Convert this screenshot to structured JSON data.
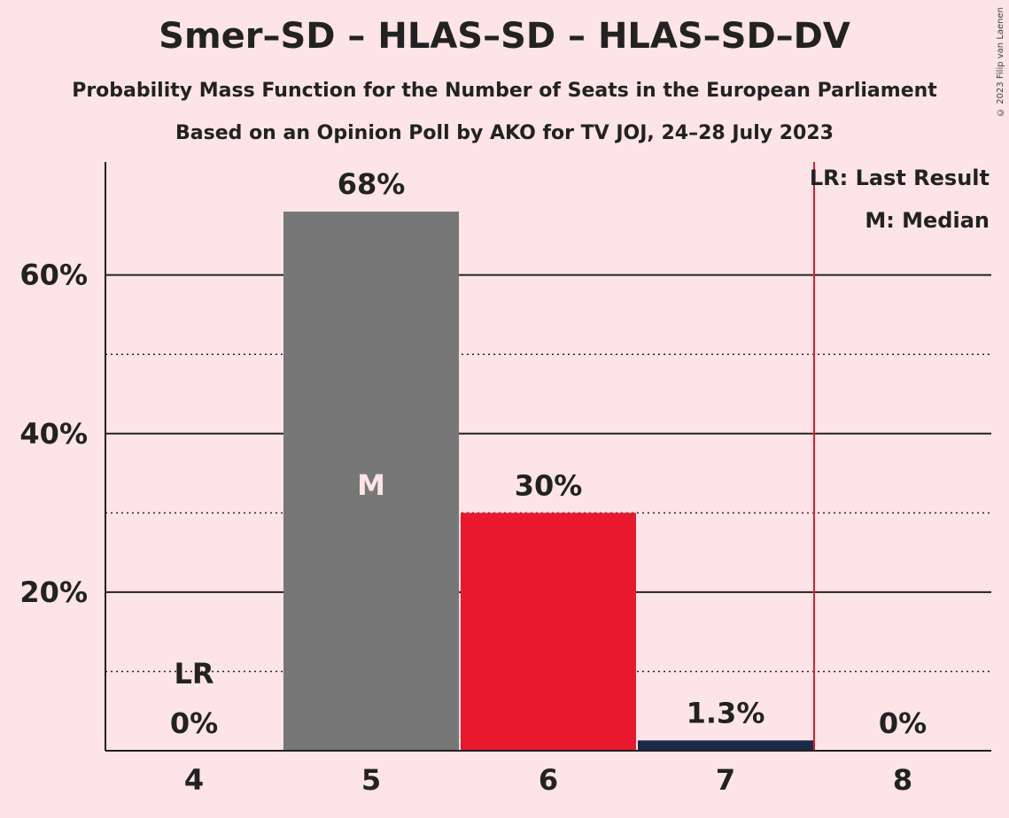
{
  "title": "Smer–SD – HLAS–SD – HLAS–SD–DV",
  "subtitle": "Probability Mass Function for the Number of Seats in the European Parliament",
  "subtitle2": "Based on an Opinion Poll by AKO for TV JOJ, 24–28 July 2023",
  "copyright": "© 2023 Filip van Laenen",
  "legend": {
    "last_result": "LR: Last Result",
    "median": "M: Median"
  },
  "colors": {
    "background": "#fde4e6",
    "median_bar": "#777777",
    "party": "#e8192f",
    "small_bar": "#1b2a4a",
    "last_result_line": "#e8192f"
  },
  "chart_data": {
    "type": "bar",
    "categories": [
      "4",
      "5",
      "6",
      "7",
      "8"
    ],
    "values": [
      0,
      68,
      30,
      1.3,
      0
    ],
    "value_labels": [
      "0%",
      "68%",
      "30%",
      "1.3%",
      "0%"
    ],
    "bar_colors": [
      "#e8192f",
      "#777777",
      "#e8192f",
      "#1b2a4a",
      "#e8192f"
    ],
    "ylim": [
      0,
      75
    ],
    "yticks": [
      20,
      40,
      60
    ],
    "ytick_labels": [
      "20%",
      "40%",
      "60%"
    ],
    "minor_gridlines": [
      10,
      30,
      50
    ],
    "last_result_category": "4",
    "last_result_label": "LR",
    "median_category": "5",
    "median_label": "M",
    "majority_line_after_category": "7",
    "grid": true,
    "legend_position": "top-right"
  }
}
